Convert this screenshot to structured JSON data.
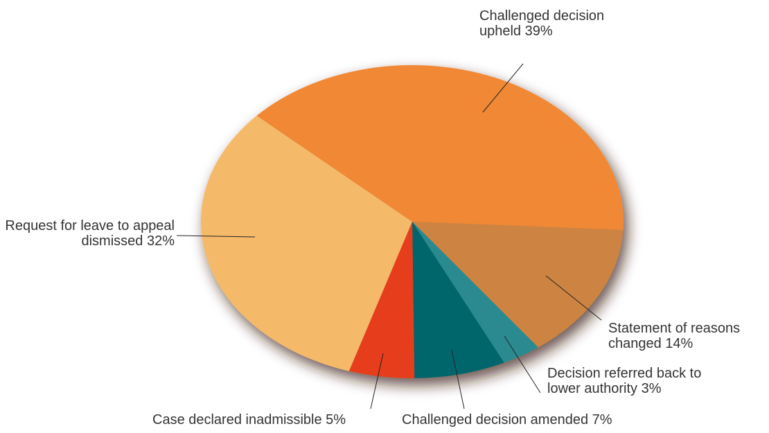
{
  "chart_data": {
    "type": "pie",
    "categories": [
      "Statement of reasons changed",
      "Decision referred back to lower authority",
      "Challenged decision amended",
      "Case declared inadmissible",
      "Request for leave to appeal dismissed",
      "Challenged decision upheld"
    ],
    "values": [
      14,
      3,
      7,
      5,
      32,
      39
    ],
    "value_labels": [
      "14%",
      "3%",
      "7%",
      "5%",
      "32%",
      "39%"
    ],
    "colors": [
      "#cd8442",
      "#2a8a90",
      "#00666c",
      "#e63e1a",
      "#f5b96a",
      "#f08836"
    ]
  }
}
